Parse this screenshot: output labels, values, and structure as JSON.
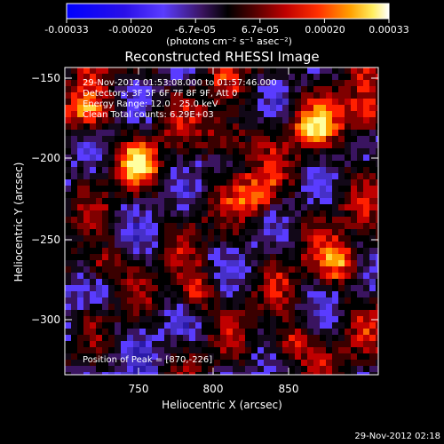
{
  "colorbar": {
    "tick_labels": [
      "-0.00033",
      "-0.00020",
      "-6.7e-05",
      "6.7e-05",
      "0.00020",
      "0.00033"
    ],
    "unit_label": "(photons cm⁻² s⁻¹ asec⁻²)",
    "colors": [
      "#0000ff",
      "#3a00d8",
      "#5a3cff",
      "#6a2aa0",
      "#000000",
      "#5a0000",
      "#b00000",
      "#ff2000",
      "#ff7a00",
      "#ffc000",
      "#ffff90",
      "#ffffff"
    ]
  },
  "plot": {
    "title": "Reconstructed RHESSI Image",
    "annotation_lines": [
      "29-Nov-2012 01:53:08.000 to 01:57:46.000",
      "Detectors: 3F 5F 6F 7F 8F 9F, Att 0",
      "Energy Range: 12.0 - 25.0 keV",
      "Clean      Total counts: 6.29E+03"
    ],
    "peak_text": "Position of Peak = [870,-226]"
  },
  "axes": {
    "xlabel": "Heliocentric X (arcsec)",
    "ylabel": "Heliocentric Y (arcsec)",
    "x_ticks": [
      "750",
      "800",
      "850"
    ],
    "y_ticks": [
      "−150",
      "−200",
      "−250",
      "−300"
    ]
  },
  "footer": {
    "timestamp": "29-Nov-2012 02:18"
  }
}
